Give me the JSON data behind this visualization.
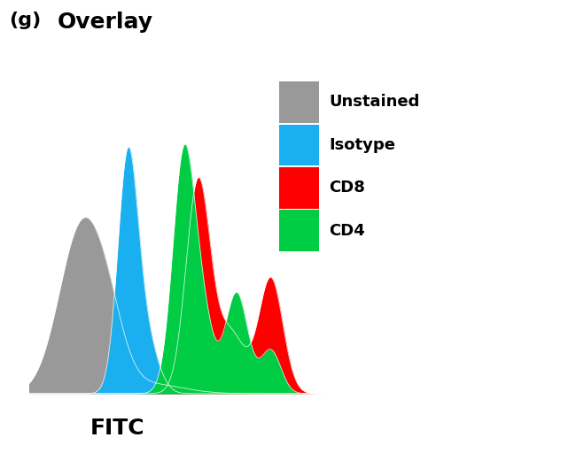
{
  "title_prefix": "(g)",
  "title_main": "Overlay",
  "xlabel": "FITC",
  "background_color": "#ffffff",
  "title_fontsize": 18,
  "xlabel_fontsize": 18,
  "legend_labels": [
    "Unstained",
    "Isotype",
    "CD8",
    "CD4"
  ],
  "legend_colors": [
    "#999999",
    "#1ab0f0",
    "#ff0000",
    "#00cc44"
  ]
}
